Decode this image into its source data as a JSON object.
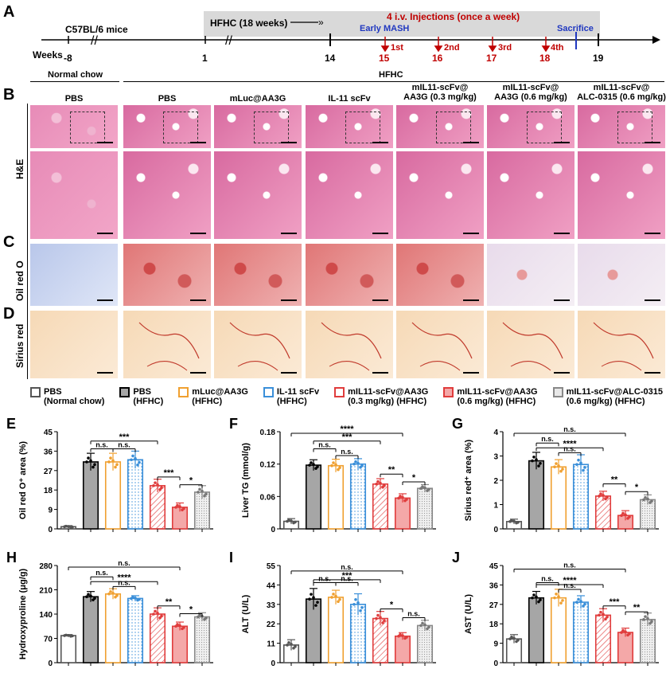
{
  "panel_labels": {
    "A": "A",
    "B": "B",
    "C": "C",
    "D": "D",
    "E": "E",
    "F": "F",
    "G": "G",
    "H": "H",
    "I": "I",
    "J": "J"
  },
  "timeline": {
    "mice_label": "C57BL/6 mice",
    "weeks_label": "Weeks",
    "hfhc_label": "HFHC (18 weeks)",
    "injections_label": "4 i.v. Injections (once a week)",
    "early_mash": "Early MASH",
    "sacrifice": "Sacrifice",
    "ticks": [
      "-8",
      "1",
      "14",
      "15",
      "16",
      "17",
      "18",
      "19"
    ],
    "doses": [
      "1st",
      "2nd",
      "3rd",
      "4th"
    ]
  },
  "diet_labels": {
    "normal": "Normal chow",
    "hfhc": "HFHC"
  },
  "columns": [
    {
      "line1": "",
      "line2": "PBS"
    },
    {
      "line1": "",
      "line2": "PBS"
    },
    {
      "line1": "",
      "line2": "mLuc@AA3G"
    },
    {
      "line1": "",
      "line2": "IL-11 scFv"
    },
    {
      "line1": "mIL11-scFv@",
      "line2": "AA3G (0.3 mg/kg)"
    },
    {
      "line1": "mIL11-scFv@",
      "line2": "AA3G (0.6 mg/kg)"
    },
    {
      "line1": "mIL11-scFv@",
      "line2": "ALC-0315 (0.6 mg/kg)"
    }
  ],
  "row_labels": {
    "he": "H&E",
    "oro": "Oil red O",
    "sr": "Sirius red"
  },
  "legend": [
    {
      "line1": "PBS",
      "line2": "(Normal chow)",
      "color": "#ffffff",
      "border": "#555555"
    },
    {
      "line1": "PBS",
      "line2": "(HFHC)",
      "color": "#a6a6a6",
      "border": "#000000"
    },
    {
      "line1": "mLuc@AA3G",
      "line2": "(HFHC)",
      "color": "#ffffff",
      "border": "#f0a030"
    },
    {
      "line1": "IL-11 scFv",
      "line2": "(HFHC)",
      "color": "#ffffff",
      "border": "#3a8fd9"
    },
    {
      "line1": "mIL11-scFv@AA3G",
      "line2": "(0.3 mg/kg) (HFHC)",
      "color": "#ffffff",
      "border": "#e03c3c"
    },
    {
      "line1": "mIL11-scFv@AA3G",
      "line2": "(0.6 mg/kg) (HFHC)",
      "color": "#f4a8a8",
      "border": "#e03c3c"
    },
    {
      "line1": "mIL11-scFv@ALC-0315",
      "line2": "(0.6 mg/kg) (HFHC)",
      "color": "#e8e8e8",
      "border": "#888888"
    }
  ],
  "chart_data": [
    {
      "panel": "E",
      "type": "bar",
      "ylabel": "Oil red O⁺ area (%)",
      "ylim": [
        0,
        45
      ],
      "yticks": [
        "0",
        "9",
        "18",
        "27",
        "36",
        "45"
      ],
      "values": [
        1.0,
        31,
        31,
        32,
        20,
        10,
        17
      ],
      "errors": [
        0.5,
        4,
        4,
        4,
        3,
        2,
        3
      ],
      "sig": [
        {
          "a": 1,
          "b": 4,
          "label": "***",
          "level": 0.92
        },
        {
          "a": 1,
          "b": 2,
          "label": "n.s.",
          "level": 0.84
        },
        {
          "a": 2,
          "b": 3,
          "label": "n.s.",
          "level": 0.84
        },
        {
          "a": 4,
          "b": 5,
          "label": "***",
          "level": 0.55
        },
        {
          "a": 5,
          "b": 6,
          "label": "*",
          "level": 0.47
        }
      ]
    },
    {
      "panel": "F",
      "type": "bar",
      "ylabel": "Liver TG (mmol/g)",
      "ylim": [
        0,
        0.18
      ],
      "yticks": [
        "0",
        "0.06",
        "0.12",
        "0.18"
      ],
      "values": [
        0.014,
        0.118,
        0.117,
        0.12,
        0.083,
        0.057,
        0.075
      ],
      "errors": [
        0.005,
        0.01,
        0.012,
        0.01,
        0.01,
        0.008,
        0.007
      ],
      "sig": [
        {
          "a": 0,
          "b": 5,
          "label": "****",
          "level": 1.0
        },
        {
          "a": 1,
          "b": 4,
          "label": "***",
          "level": 0.92
        },
        {
          "a": 1,
          "b": 2,
          "label": "n.s.",
          "level": 0.84
        },
        {
          "a": 2,
          "b": 3,
          "label": "n.s.",
          "level": 0.77
        },
        {
          "a": 4,
          "b": 5,
          "label": "**",
          "level": 0.58
        },
        {
          "a": 5,
          "b": 6,
          "label": "*",
          "level": 0.5
        }
      ]
    },
    {
      "panel": "G",
      "type": "bar",
      "ylabel": "Sirius red⁺ area (%)",
      "ylim": [
        0,
        4
      ],
      "yticks": [
        "0",
        "1",
        "2",
        "3",
        "4"
      ],
      "values": [
        0.3,
        2.8,
        2.55,
        2.65,
        1.35,
        0.55,
        1.2
      ],
      "errors": [
        0.1,
        0.35,
        0.3,
        0.4,
        0.2,
        0.2,
        0.2
      ],
      "sig": [
        {
          "a": 0,
          "b": 5,
          "label": "n.s.",
          "level": 1.0
        },
        {
          "a": 1,
          "b": 2,
          "label": "n.s.",
          "level": 0.9
        },
        {
          "a": 1,
          "b": 4,
          "label": "****",
          "level": 0.85
        },
        {
          "a": 2,
          "b": 3,
          "label": "n.s.",
          "level": 0.8
        },
        {
          "a": 4,
          "b": 5,
          "label": "**",
          "level": 0.48
        },
        {
          "a": 5,
          "b": 6,
          "label": "*",
          "level": 0.4
        }
      ]
    },
    {
      "panel": "H",
      "type": "bar",
      "ylabel": "Hydroxyproline (μg/g)",
      "ylim": [
        0,
        280
      ],
      "yticks": [
        "0",
        "70",
        "140",
        "210",
        "280"
      ],
      "values": [
        78,
        190,
        198,
        185,
        140,
        105,
        132
      ],
      "errors": [
        3,
        15,
        15,
        8,
        18,
        12,
        12
      ],
      "sig": [
        {
          "a": 0,
          "b": 5,
          "label": "n.s.",
          "level": 1.0
        },
        {
          "a": 1,
          "b": 2,
          "label": "n.s.",
          "level": 0.9
        },
        {
          "a": 1,
          "b": 4,
          "label": "****",
          "level": 0.85
        },
        {
          "a": 2,
          "b": 3,
          "label": "n.s.",
          "level": 0.8
        },
        {
          "a": 4,
          "b": 5,
          "label": "**",
          "level": 0.6
        },
        {
          "a": 5,
          "b": 6,
          "label": "*",
          "level": 0.52
        }
      ]
    },
    {
      "panel": "I",
      "type": "bar",
      "ylabel": "ALT (U/L)",
      "ylim": [
        0,
        55
      ],
      "yticks": [
        "0",
        "11",
        "22",
        "33",
        "44",
        "55"
      ],
      "values": [
        10,
        36,
        37,
        33,
        25,
        15,
        21
      ],
      "errors": [
        3,
        6,
        4,
        6,
        4,
        2,
        3
      ],
      "sig": [
        {
          "a": 0,
          "b": 5,
          "label": "n.s.",
          "level": 0.96
        },
        {
          "a": 1,
          "b": 2,
          "label": "n.s.",
          "level": 0.84
        },
        {
          "a": 1,
          "b": 4,
          "label": "***",
          "level": 0.87
        },
        {
          "a": 2,
          "b": 3,
          "label": "n.s.",
          "level": 0.84
        },
        {
          "a": 4,
          "b": 5,
          "label": "*",
          "level": 0.57
        },
        {
          "a": 5,
          "b": 6,
          "label": "n.s.",
          "level": 0.48
        }
      ]
    },
    {
      "panel": "J",
      "type": "bar",
      "ylabel": "AST (U/L)",
      "ylim": [
        0,
        45
      ],
      "yticks": [
        "0",
        "9",
        "18",
        "27",
        "36",
        "45"
      ],
      "values": [
        11,
        30,
        30,
        28,
        22,
        14,
        20
      ],
      "errors": [
        2,
        3,
        4,
        3,
        3,
        2,
        3
      ],
      "sig": [
        {
          "a": 0,
          "b": 5,
          "label": "n.s.",
          "level": 0.98
        },
        {
          "a": 1,
          "b": 2,
          "label": "n.s.",
          "level": 0.84
        },
        {
          "a": 1,
          "b": 4,
          "label": "****",
          "level": 0.82
        },
        {
          "a": 2,
          "b": 3,
          "label": "n.s.",
          "level": 0.77
        },
        {
          "a": 4,
          "b": 5,
          "label": "***",
          "level": 0.6
        },
        {
          "a": 5,
          "b": 6,
          "label": "**",
          "level": 0.54
        }
      ]
    }
  ]
}
